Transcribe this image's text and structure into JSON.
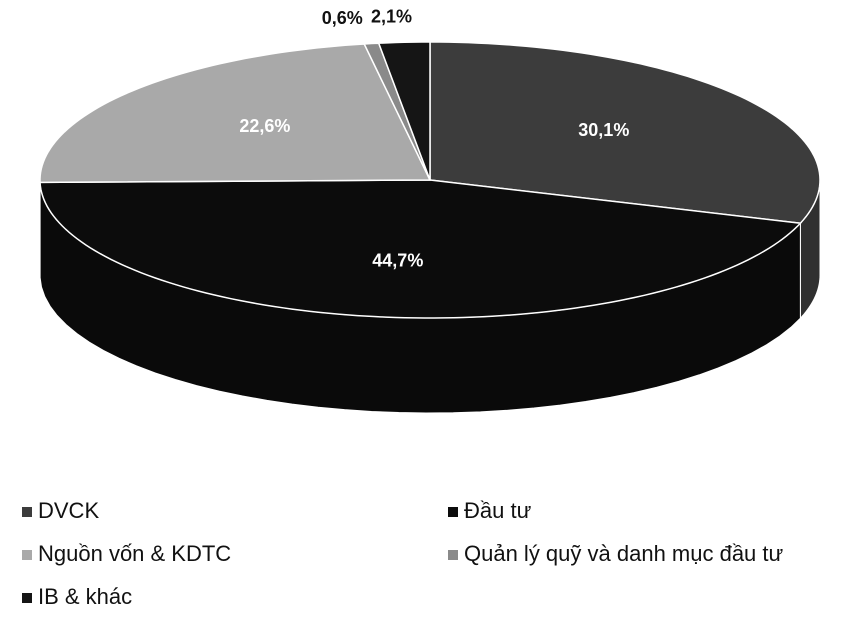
{
  "chart_data": {
    "type": "pie",
    "categories": [
      "DVCK",
      "Đầu tư",
      "Nguồn vốn & KDTC",
      "Quản lý quỹ và danh mục đầu tư",
      "IB & khác"
    ],
    "values": [
      30.1,
      44.7,
      22.6,
      0.6,
      2.1
    ],
    "value_labels": [
      "30,1%",
      "44,7%",
      "22,6%",
      "0,6%",
      "2,1%"
    ],
    "colors": [
      "#3c3c3c",
      "#0c0c0c",
      "#a9a9a9",
      "#8a8a8a",
      "#151515"
    ]
  }
}
